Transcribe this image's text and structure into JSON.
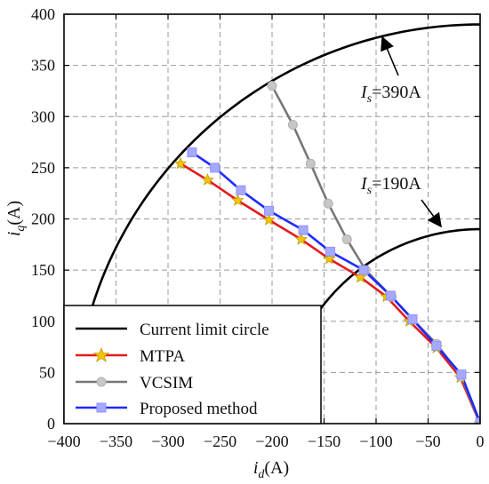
{
  "chart_data": {
    "type": "line",
    "title": "",
    "xlabel": "id(A)",
    "ylabel": "iq(A)",
    "xlabel_main": "i",
    "xlabel_sub": "d",
    "xlabel_unit": "(A)",
    "ylabel_main": "i",
    "ylabel_sub": "q",
    "ylabel_unit": "(A)",
    "xlim": [
      -400,
      0
    ],
    "ylim": [
      0,
      400
    ],
    "x_ticks": [
      -400,
      -350,
      -300,
      -250,
      -200,
      -150,
      -100,
      -50,
      0
    ],
    "y_ticks": [
      0,
      50,
      100,
      150,
      200,
      250,
      300,
      350,
      400
    ],
    "grid": "dashed",
    "legend_position": "bottom-left",
    "annotations": [
      {
        "main": "I",
        "sub": "s",
        "text": "=390A"
      },
      {
        "main": "I",
        "sub": "s",
        "text": "=190A"
      }
    ],
    "circles": [
      {
        "radius": 390
      },
      {
        "radius": 190
      }
    ],
    "series": [
      {
        "name": "Current limit circle",
        "color": "#000000",
        "marker": "none"
      },
      {
        "name": "MTPA",
        "color": "#e31a1c",
        "marker": "star",
        "marker_color": "#f3c400",
        "points": [
          [
            -288,
            254
          ],
          [
            -262,
            238
          ],
          [
            -233,
            218
          ],
          [
            -203,
            199
          ],
          [
            -172,
            180
          ],
          [
            -145,
            161
          ],
          [
            -115,
            143
          ],
          [
            -90,
            124
          ],
          [
            -68,
            100
          ],
          [
            -42,
            74
          ],
          [
            -19,
            45
          ],
          [
            0,
            0
          ]
        ]
      },
      {
        "name": "VCSIM",
        "color": "#777777",
        "marker": "circle",
        "marker_color": "#c7c7c7",
        "points": [
          [
            -200,
            330
          ],
          [
            -180,
            292
          ],
          [
            -163,
            254
          ],
          [
            -146,
            215
          ],
          [
            -128,
            180
          ],
          [
            -110,
            150
          ],
          [
            -85,
            124
          ],
          [
            -65,
            102
          ],
          [
            -42,
            78
          ],
          [
            -18,
            46
          ],
          [
            0,
            0
          ]
        ]
      },
      {
        "name": "Proposed method",
        "color": "#1f2bff",
        "marker": "square",
        "marker_color": "#a6a9ff",
        "points": [
          [
            -277,
            265
          ],
          [
            -255,
            250
          ],
          [
            -230,
            228
          ],
          [
            -203,
            208
          ],
          [
            -170,
            189
          ],
          [
            -144,
            168
          ],
          [
            -112,
            150
          ],
          [
            -86,
            125
          ],
          [
            -65,
            102
          ],
          [
            -42,
            76
          ],
          [
            -18,
            48
          ],
          [
            0,
            1
          ]
        ]
      }
    ]
  }
}
